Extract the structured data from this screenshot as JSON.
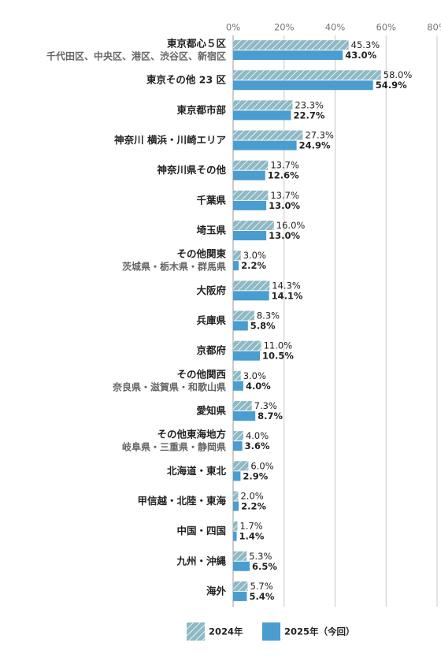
{
  "chart_data": {
    "type": "bar",
    "orientation": "horizontal",
    "categories": [
      "東京都心５区",
      "東京その他 23 区",
      "東京都市部",
      "神奈川 横浜・川崎エリア",
      "神奈川県その他",
      "千葉県",
      "埼玉県",
      "その他関東",
      "大阪府",
      "兵庫県",
      "京都府",
      "その他関西",
      "愛知県",
      "その他東海地方",
      "北海道・東北",
      "甲信越・北陸・東海",
      "中国・四国",
      "九州・沖縄",
      "海外"
    ],
    "category_sublabels": [
      "千代田区、中央区、港区、渋谷区、新宿区",
      null,
      null,
      null,
      null,
      null,
      null,
      "茨城県・栃木県・群馬県",
      null,
      null,
      null,
      "奈良県・滋賀県・和歌山県",
      null,
      "岐阜県・三重県・静岡県",
      null,
      null,
      null,
      null,
      null
    ],
    "series": [
      {
        "name": "2024年",
        "color": "#8db8c4",
        "hatch": true,
        "values": [
          45.3,
          58.0,
          23.3,
          27.3,
          13.7,
          13.7,
          16.0,
          3.0,
          14.3,
          8.3,
          11.0,
          3.0,
          7.3,
          4.0,
          6.0,
          2.0,
          1.7,
          5.3,
          5.7
        ],
        "value_labels": [
          "45.3%",
          "58.0%",
          "23.3%",
          "27.3%",
          "13.7%",
          "13.7%",
          "16.0%",
          "3.0%",
          "14.3%",
          "8.3%",
          "11.0%",
          "3.0%",
          "7.3%",
          "4.0%",
          "6.0%",
          "2.0%",
          "1.7%",
          "5.3%",
          "5.7%"
        ]
      },
      {
        "name": "2025年（今回）",
        "color": "#4a9dcf",
        "hatch": false,
        "values": [
          43.0,
          54.9,
          22.7,
          24.9,
          12.6,
          13.0,
          13.0,
          2.2,
          14.1,
          5.8,
          10.5,
          4.0,
          8.7,
          3.6,
          2.9,
          2.2,
          1.4,
          6.5,
          5.4
        ],
        "value_labels": [
          "43.0%",
          "54.9%",
          "22.7%",
          "24.9%",
          "12.6%",
          "13.0%",
          "13.0%",
          "2.2%",
          "14.1%",
          "5.8%",
          "10.5%",
          "4.0%",
          "8.7%",
          "3.6%",
          "2.9%",
          "2.2%",
          "1.4%",
          "6.5%",
          "5.4%"
        ]
      }
    ],
    "xlim": [
      0,
      80
    ],
    "xticks": [
      {
        "value": 0,
        "label": "0%"
      },
      {
        "value": 20,
        "label": "20%"
      },
      {
        "value": 40,
        "label": "40%"
      },
      {
        "value": 60,
        "label": "60%"
      },
      {
        "value": 80,
        "label": "80%"
      }
    ],
    "grid": true,
    "legend": "bottom"
  }
}
